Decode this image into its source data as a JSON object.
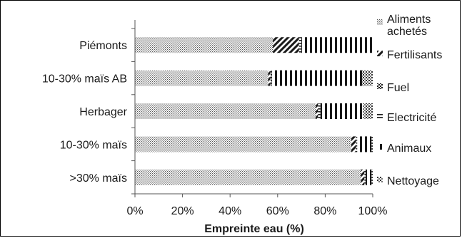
{
  "chart_data": {
    "type": "bar",
    "orientation": "horizontal",
    "stacked": "percent",
    "categories": [
      "Piémonts",
      "10-30% maïs AB",
      "Herbager",
      "10-30% maïs",
      ">30% maïs"
    ],
    "series": [
      {
        "name": "Aliments achetés",
        "pattern": "dots",
        "values": [
          58,
          56,
          76,
          91,
          95
        ]
      },
      {
        "name": "Fertilisants",
        "pattern": "diagonal",
        "values": [
          11,
          1,
          1,
          2,
          1.5
        ]
      },
      {
        "name": "Fuel",
        "pattern": "checker",
        "values": [
          0,
          0,
          0,
          0,
          0
        ]
      },
      {
        "name": "Electricité",
        "pattern": "horizontal",
        "values": [
          1,
          0.5,
          1,
          0.5,
          0.5
        ]
      },
      {
        "name": "Animaux",
        "pattern": "vertical",
        "values": [
          30,
          38,
          18,
          6,
          2.5
        ]
      },
      {
        "name": "Nettoyage",
        "pattern": "grid",
        "values": [
          0,
          4.5,
          4,
          0.5,
          0.5
        ]
      }
    ],
    "xlabel": "Empreinte eau (%)",
    "xlim": [
      0,
      100
    ],
    "xticks": [
      "0%",
      "20%",
      "40%",
      "60%",
      "80%",
      "100%"
    ],
    "grid": false,
    "legend": "right",
    "colors": {
      "ink": "#1a1a1a",
      "background": "#ffffff"
    }
  }
}
